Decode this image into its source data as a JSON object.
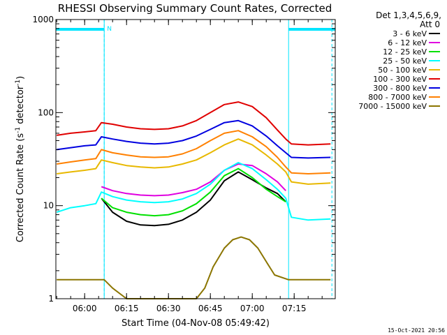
{
  "chart_data": {
    "type": "line",
    "title": "RHESSI Observing Summary Count Rates, Corrected",
    "xlabel": "Start Time (04-Nov-08 05:49:42)",
    "ylabel": "Corrected Count Rate (s",
    "ylabel_sup1": "-1",
    "ylabel_mid": " detector",
    "ylabel_sup2": "-1",
    "ylabel_end": ")",
    "footer_date": "15-Oct-2021 20:56",
    "legend_header": [
      "Det 1,3,4,5,6,9,",
      "Att 0"
    ],
    "y_scale": "log",
    "ylim": [
      1,
      1000
    ],
    "xlim": [
      "05:49:42",
      "07:29:42"
    ],
    "x_ticks": [
      "06:00",
      "06:15",
      "06:30",
      "06:45",
      "07:00",
      "07:15"
    ],
    "y_ticks": [
      "1",
      "10",
      "100",
      "1000"
    ],
    "grid": false,
    "legend_position": "right",
    "flag_label": "N",
    "night_intervals": [
      [
        "05:49:42",
        "06:07:00"
      ],
      [
        "07:13:00",
        "07:29:42"
      ]
    ],
    "saa_markers": [
      "06:07:00",
      "07:28:30"
    ],
    "colors": {
      "axes": "#000000",
      "night": "#00e5ff",
      "s1": "#000000",
      "s2": "#e000e0",
      "s3": "#00e000",
      "s4": "#00ffff",
      "s5": "#e8b800",
      "s6": "#e00000",
      "s7": "#0000e0",
      "s8": "#ff8000",
      "s9": "#8b7500"
    },
    "series": [
      {
        "name": "3 - 6 keV",
        "color_key": "s1",
        "x": [
          "06:06",
          "06:10",
          "06:15",
          "06:20",
          "06:25",
          "06:30",
          "06:35",
          "06:40",
          "06:45",
          "06:50",
          "06:55",
          "07:00",
          "07:05",
          "07:09",
          "07:12"
        ],
        "y": [
          12.0,
          8.5,
          6.8,
          6.2,
          6.1,
          6.3,
          7.0,
          8.5,
          11.5,
          18.5,
          23.0,
          19.0,
          15.5,
          13.5,
          11.0
        ]
      },
      {
        "name": "6 - 12 keV",
        "color_key": "s2",
        "x": [
          "06:06",
          "06:10",
          "06:15",
          "06:20",
          "06:25",
          "06:30",
          "06:35",
          "06:40",
          "06:45",
          "06:50",
          "06:55",
          "07:00",
          "07:05",
          "07:09",
          "07:12"
        ],
        "y": [
          16.0,
          14.5,
          13.5,
          13.0,
          12.8,
          13.0,
          13.8,
          15.0,
          18.0,
          24.0,
          28.0,
          27.0,
          22.0,
          18.0,
          14.5
        ]
      },
      {
        "name": "12 - 25 keV",
        "color_key": "s3",
        "x": [
          "06:06",
          "06:10",
          "06:15",
          "06:20",
          "06:25",
          "06:30",
          "06:35",
          "06:40",
          "06:45",
          "06:50",
          "06:55",
          "07:00",
          "07:05",
          "07:09",
          "07:12"
        ],
        "y": [
          12.0,
          9.5,
          8.5,
          8.0,
          7.8,
          8.0,
          8.8,
          10.5,
          14.0,
          21.0,
          25.0,
          20.0,
          15.0,
          12.5,
          11.0
        ]
      },
      {
        "name": "25 - 50 keV",
        "color_key": "s4",
        "x": [
          "05:50",
          "05:55",
          "06:00",
          "06:04",
          "06:06",
          "06:10",
          "06:15",
          "06:20",
          "06:25",
          "06:30",
          "06:35",
          "06:40",
          "06:45",
          "06:50",
          "06:55",
          "07:00",
          "07:05",
          "07:09",
          "07:12",
          "07:14",
          "07:20",
          "07:28"
        ],
        "y": [
          8.5,
          9.5,
          10.0,
          10.5,
          14.0,
          12.5,
          11.5,
          11.0,
          10.8,
          11.0,
          11.8,
          13.5,
          17.0,
          24.0,
          29.0,
          25.0,
          19.0,
          15.0,
          12.0,
          7.5,
          7.0,
          7.2
        ]
      },
      {
        "name": "50 - 100 keV",
        "color_key": "s5",
        "x": [
          "05:50",
          "05:55",
          "06:00",
          "06:04",
          "06:06",
          "06:10",
          "06:15",
          "06:20",
          "06:25",
          "06:30",
          "06:35",
          "06:40",
          "06:45",
          "06:50",
          "06:55",
          "07:00",
          "07:05",
          "07:09",
          "07:12",
          "07:14",
          "07:20",
          "07:28"
        ],
        "y": [
          22.0,
          23.0,
          24.0,
          25.0,
          31.0,
          29.0,
          27.0,
          26.0,
          25.5,
          26.0,
          28.0,
          31.0,
          37.0,
          45.0,
          52.0,
          45.0,
          35.0,
          28.0,
          23.0,
          18.0,
          17.0,
          17.5
        ]
      },
      {
        "name": "100 - 300 keV",
        "color_key": "s6",
        "x": [
          "05:50",
          "05:55",
          "06:00",
          "06:04",
          "06:06",
          "06:10",
          "06:15",
          "06:20",
          "06:25",
          "06:30",
          "06:35",
          "06:40",
          "06:45",
          "06:50",
          "06:55",
          "07:00",
          "07:05",
          "07:09",
          "07:12",
          "07:14",
          "07:20",
          "07:28"
        ],
        "y": [
          57.0,
          60.0,
          62.0,
          64.0,
          78.0,
          75.0,
          70.0,
          67.0,
          66.0,
          67.0,
          72.0,
          82.0,
          100.0,
          122.0,
          130.0,
          116.0,
          88.0,
          65.0,
          52.0,
          46.0,
          45.0,
          46.0
        ]
      },
      {
        "name": "300 - 800 keV",
        "color_key": "s7",
        "x": [
          "05:50",
          "05:55",
          "06:00",
          "06:04",
          "06:06",
          "06:10",
          "06:15",
          "06:20",
          "06:25",
          "06:30",
          "06:35",
          "06:40",
          "06:45",
          "06:50",
          "06:55",
          "07:00",
          "07:05",
          "07:09",
          "07:12",
          "07:14",
          "07:20",
          "07:28"
        ],
        "y": [
          40.0,
          42.0,
          44.0,
          45.0,
          55.0,
          52.0,
          49.0,
          47.0,
          46.0,
          47.0,
          50.0,
          56.0,
          66.0,
          78.0,
          82.0,
          72.0,
          56.0,
          44.0,
          37.0,
          33.0,
          32.5,
          33.0
        ]
      },
      {
        "name": "800 - 7000 keV",
        "color_key": "s8",
        "x": [
          "05:50",
          "05:55",
          "06:00",
          "06:04",
          "06:06",
          "06:10",
          "06:15",
          "06:20",
          "06:25",
          "06:30",
          "06:35",
          "06:40",
          "06:45",
          "06:50",
          "06:55",
          "07:00",
          "07:05",
          "07:09",
          "07:12",
          "07:14",
          "07:20",
          "07:28"
        ],
        "y": [
          28.0,
          29.5,
          31.0,
          32.0,
          40.0,
          37.0,
          35.0,
          33.5,
          33.0,
          33.5,
          36.0,
          41.0,
          50.0,
          60.0,
          64.0,
          55.0,
          43.0,
          33.0,
          26.0,
          22.5,
          22.0,
          22.5
        ]
      },
      {
        "name": "7000 - 15000 keV",
        "color_key": "s9",
        "x": [
          "05:50",
          "06:00",
          "06:07",
          "06:10",
          "06:15",
          "06:20",
          "06:25",
          "06:30",
          "06:35",
          "06:40",
          "06:43",
          "06:46",
          "06:50",
          "06:53",
          "06:56",
          "06:59",
          "07:02",
          "07:05",
          "07:08",
          "07:13",
          "07:20",
          "07:28"
        ],
        "y": [
          1.6,
          1.6,
          1.6,
          1.3,
          1.0,
          1.0,
          1.0,
          1.0,
          1.0,
          1.0,
          1.3,
          2.2,
          3.5,
          4.3,
          4.6,
          4.3,
          3.5,
          2.5,
          1.8,
          1.6,
          1.6,
          1.6
        ]
      }
    ]
  }
}
